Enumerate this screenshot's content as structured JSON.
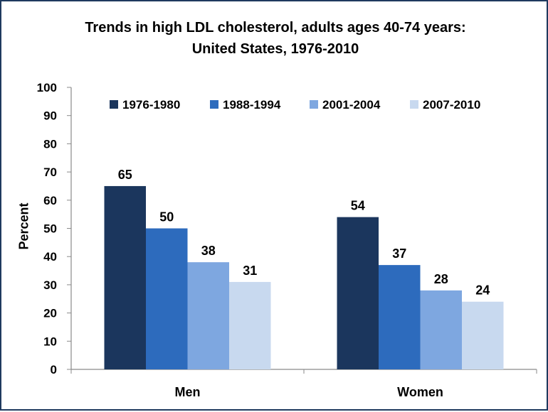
{
  "colors": {
    "series": [
      "#1b365d",
      "#2d6bbd",
      "#7ea7e0",
      "#c8d9ef"
    ],
    "frame": "#1f3a5f",
    "axis": "#8a8a8a"
  },
  "chart_data": {
    "type": "bar",
    "title_line1": "Trends in high LDL cholesterol, adults ages 40-74 years:",
    "title_line2": "United States, 1976-2010",
    "ylabel": "Percent",
    "xlabel": "",
    "ylim": [
      0,
      100
    ],
    "yticks": [
      0,
      10,
      20,
      30,
      40,
      50,
      60,
      70,
      80,
      90,
      100
    ],
    "categories": [
      "Men",
      "Women"
    ],
    "series": [
      {
        "name": "1976-1980",
        "values": [
          65,
          54
        ]
      },
      {
        "name": "1988-1994",
        "values": [
          50,
          37
        ]
      },
      {
        "name": "2001-2004",
        "values": [
          38,
          28
        ]
      },
      {
        "name": "2007-2010",
        "values": [
          31,
          24
        ]
      }
    ],
    "legend_position": "top"
  }
}
